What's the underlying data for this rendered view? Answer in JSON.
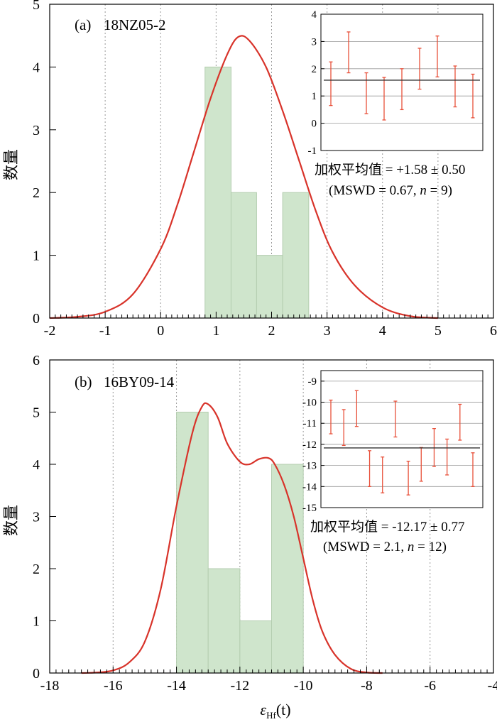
{
  "figure": {
    "xlabel": "εHf(t)",
    "xlabel_main": "ε",
    "xlabel_sub": "Hf",
    "xlabel_tail": "(t)"
  },
  "colors": {
    "histogram_fill": "#cfe5cc",
    "histogram_stroke": "#b4cdb0",
    "curve": "#d8332a",
    "error_bar": "#e8503a",
    "mean_line": "#333333",
    "inset_grid": "#9a9a9a",
    "dotted_grid": "#999999"
  },
  "chart_data": [
    {
      "type": "bar",
      "panel_label": "(a)",
      "sample": "18NZ05-2",
      "ylabel": "数量",
      "xlim": [
        -2,
        6
      ],
      "ylim": [
        0,
        5
      ],
      "x_ticks": [
        -2,
        -1,
        0,
        1,
        2,
        3,
        4,
        5,
        6
      ],
      "y_ticks": [
        0,
        1,
        2,
        3,
        4,
        5
      ],
      "bin_edges": [
        0.8,
        1.27,
        1.73,
        2.2,
        2.67
      ],
      "counts": [
        4,
        2,
        1,
        2
      ],
      "density_curve": {
        "x": [
          -2.0,
          -1.5,
          -1.0,
          -0.5,
          0.0,
          0.3,
          0.6,
          0.9,
          1.2,
          1.4,
          1.6,
          1.9,
          2.2,
          2.5,
          2.8,
          3.1,
          3.5,
          4.0,
          4.5,
          5.0
        ],
        "y": [
          0.0,
          0.02,
          0.1,
          0.38,
          1.1,
          1.8,
          2.65,
          3.5,
          4.2,
          4.48,
          4.42,
          4.0,
          3.3,
          2.5,
          1.7,
          1.05,
          0.52,
          0.17,
          0.03,
          0.0
        ]
      },
      "inset": {
        "ylim": [
          -1,
          4
        ],
        "y_ticks": [
          -1,
          0,
          1,
          2,
          3,
          4
        ],
        "points": [
          {
            "y": 1.45,
            "err": 0.8
          },
          {
            "y": 2.6,
            "err": 0.75
          },
          {
            "y": 1.1,
            "err": 0.75
          },
          {
            "y": 0.9,
            "err": 0.78
          },
          {
            "y": 1.25,
            "err": 0.75
          },
          {
            "y": 2.0,
            "err": 0.75
          },
          {
            "y": 2.45,
            "err": 0.75
          },
          {
            "y": 1.35,
            "err": 0.75
          },
          {
            "y": 1.0,
            "err": 0.8
          }
        ],
        "mean": 1.58
      },
      "wmean_text": "加权平均值 = +1.58 ± 0.50",
      "mswd_text_prefix": "(MSWD = 0.67, ",
      "n_symbol": "n",
      "mswd_text_suffix": " = 9)"
    },
    {
      "type": "bar",
      "panel_label": "(b)",
      "sample": "16BY09-14",
      "ylabel": "数量",
      "xlim": [
        -18,
        -4
      ],
      "ylim": [
        0,
        6
      ],
      "x_ticks": [
        -18,
        -16,
        -14,
        -12,
        -10,
        -8,
        -6,
        -4
      ],
      "y_ticks": [
        0,
        1,
        2,
        3,
        4,
        5,
        6
      ],
      "bin_edges": [
        -14,
        -13,
        -12,
        -11,
        -10
      ],
      "counts": [
        5,
        2,
        1,
        4
      ],
      "density_curve": {
        "x": [
          -17,
          -16.5,
          -16,
          -15.5,
          -15,
          -14.5,
          -14,
          -13.5,
          -13.2,
          -13,
          -12.7,
          -12.4,
          -12,
          -11.7,
          -11.4,
          -11.1,
          -10.9,
          -10.6,
          -10.3,
          -10,
          -9.7,
          -9.4,
          -9,
          -8.5,
          -8,
          -7.5
        ],
        "y": [
          0.0,
          0.01,
          0.05,
          0.2,
          0.6,
          1.6,
          3.2,
          4.6,
          5.1,
          5.15,
          4.9,
          4.4,
          4.05,
          4.0,
          4.1,
          4.12,
          4.0,
          3.6,
          3.0,
          2.2,
          1.4,
          0.8,
          0.35,
          0.08,
          0.01,
          0.0
        ]
      },
      "inset": {
        "ylim": [
          -15,
          -8.5
        ],
        "y_ticks": [
          -15,
          -14,
          -13,
          -12,
          -11,
          -10,
          -9
        ],
        "points": [
          {
            "y": -10.7,
            "err": 0.8
          },
          {
            "y": -11.2,
            "err": 0.85
          },
          {
            "y": -10.3,
            "err": 0.85
          },
          {
            "y": -13.15,
            "err": 0.85
          },
          {
            "y": -13.45,
            "err": 0.85
          },
          {
            "y": -10.8,
            "err": 0.85
          },
          {
            "y": -13.6,
            "err": 0.8
          },
          {
            "y": -12.95,
            "err": 0.8
          },
          {
            "y": -12.15,
            "err": 0.9
          },
          {
            "y": -12.6,
            "err": 0.85
          },
          {
            "y": -10.95,
            "err": 0.85
          },
          {
            "y": -13.2,
            "err": 0.8
          }
        ],
        "mean": -12.17
      },
      "wmean_text": "加权平均值 = -12.17 ± 0.77",
      "mswd_text_prefix": "(MSWD = 2.1, ",
      "n_symbol": "n",
      "mswd_text_suffix": " = 12)"
    }
  ]
}
